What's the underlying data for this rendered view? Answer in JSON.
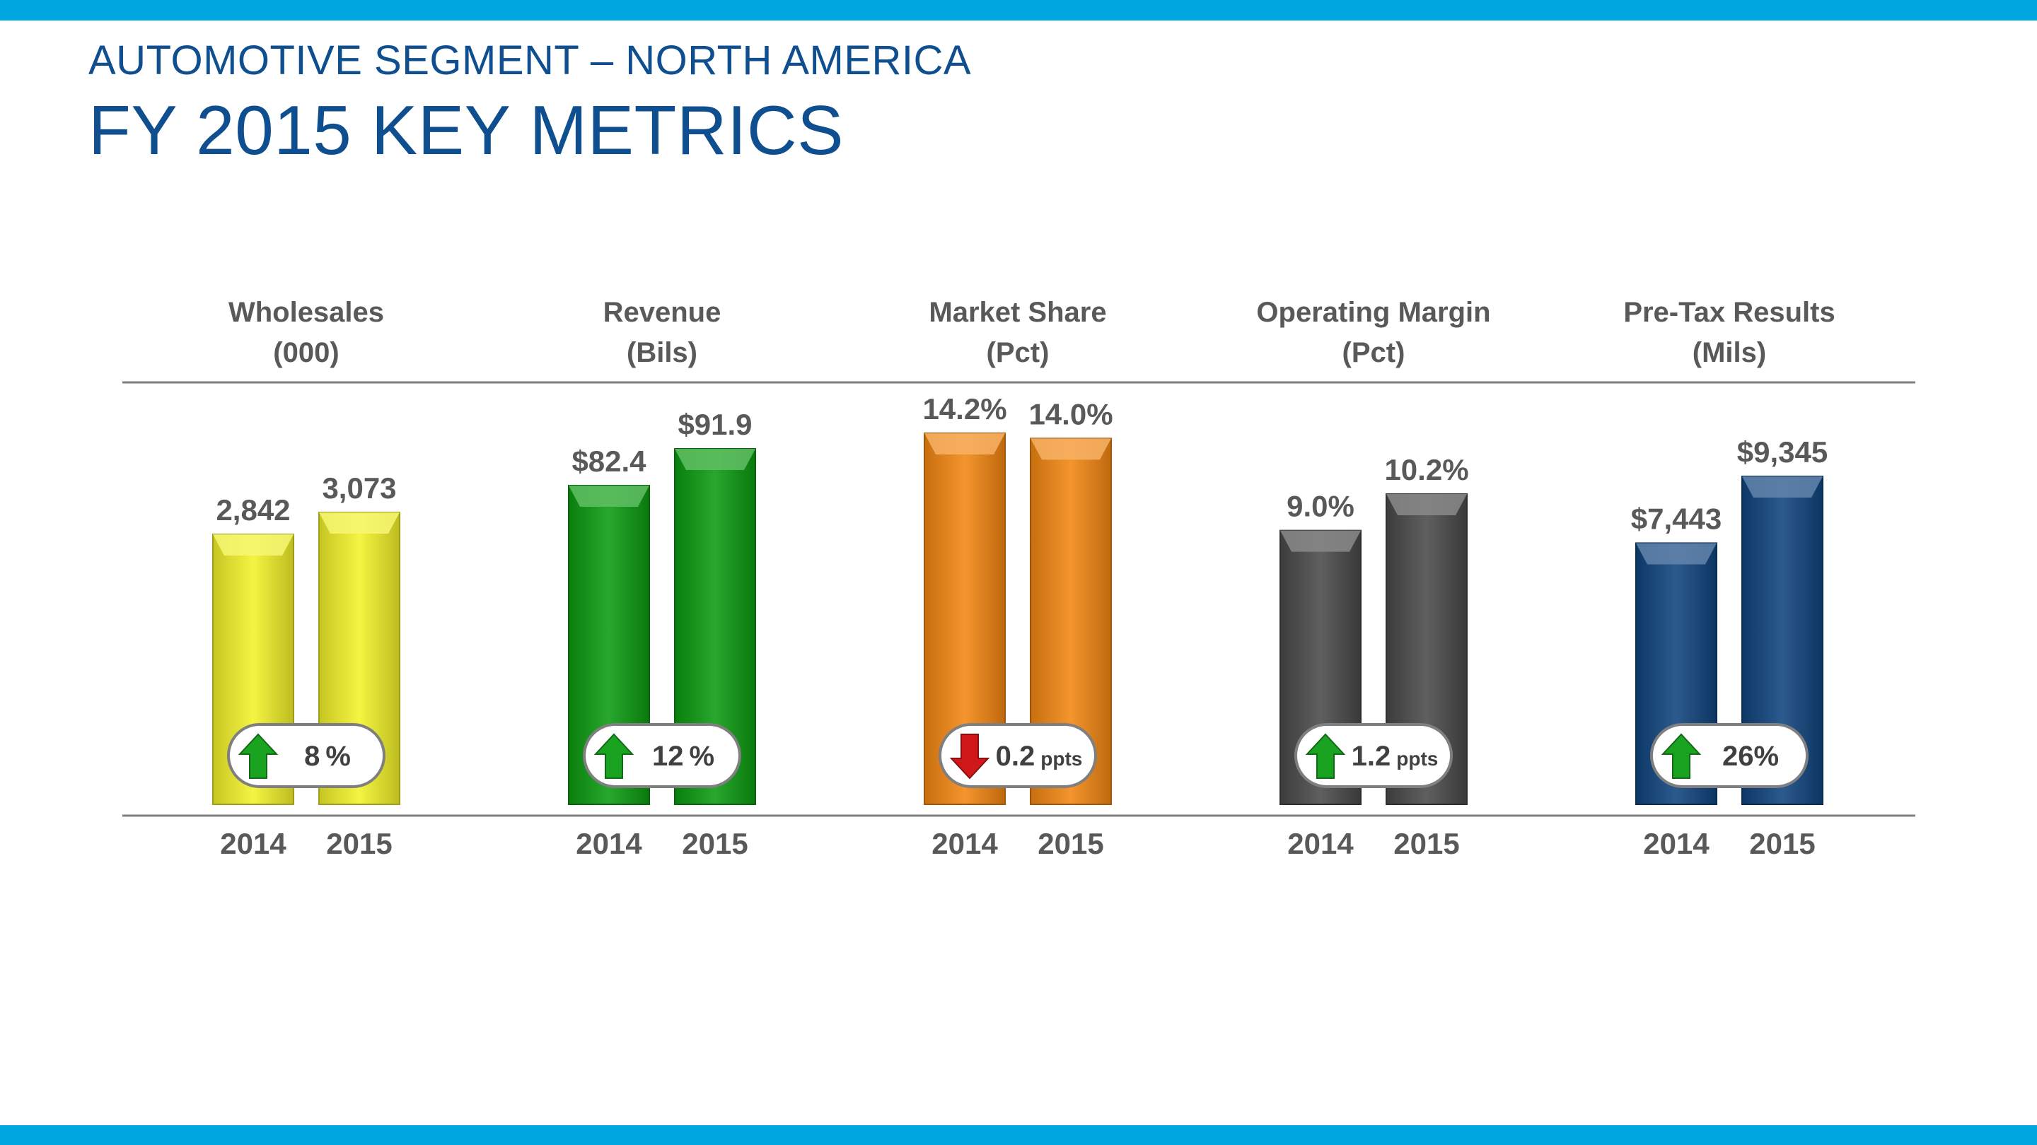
{
  "header": {
    "subtitle": "AUTOMOTIVE SEGMENT – NORTH AMERICA",
    "title": "FY 2015 KEY METRICS"
  },
  "colors": {
    "band": "#00a6e0",
    "title": "#0f4e8f",
    "label": "#595959",
    "up_arrow": "#1aa321",
    "down_arrow": "#d0181b"
  },
  "chart_data": [
    {
      "type": "bar",
      "title": "Wholesales",
      "unit_label": "(000)",
      "categories": [
        "2014",
        "2015"
      ],
      "values": [
        2842,
        3073
      ],
      "value_labels": [
        "2,842",
        "3,073"
      ],
      "color": "#f2f229",
      "change": {
        "direction": "up",
        "value": "8",
        "unit": "%"
      }
    },
    {
      "type": "bar",
      "title": "Revenue",
      "unit_label": "(Bils)",
      "categories": [
        "2014",
        "2015"
      ],
      "values": [
        82.4,
        91.9
      ],
      "value_labels": [
        "$82.4",
        "$91.9"
      ],
      "color": "#0b9b10",
      "change": {
        "direction": "up",
        "value": "12",
        "unit": "%"
      }
    },
    {
      "type": "bar",
      "title": "Market Share",
      "unit_label": "(Pct)",
      "categories": [
        "2014",
        "2015"
      ],
      "values": [
        14.2,
        14.0
      ],
      "value_labels": [
        "14.2%",
        "14.0%"
      ],
      "color": "#f38712",
      "change": {
        "direction": "down",
        "value": "0.2",
        "unit": "ppts"
      }
    },
    {
      "type": "bar",
      "title": "Operating Margin",
      "unit_label": "(Pct)",
      "categories": [
        "2014",
        "2015"
      ],
      "values": [
        9.0,
        10.2
      ],
      "value_labels": [
        "9.0%",
        "10.2%"
      ],
      "color": "#494949",
      "change": {
        "direction": "up",
        "value": "1.2",
        "unit": "ppts"
      }
    },
    {
      "type": "bar",
      "title": "Pre-Tax Results",
      "unit_label": "(Mils)",
      "categories": [
        "2014",
        "2015"
      ],
      "values": [
        7443,
        9345
      ],
      "value_labels": [
        "$7,443",
        "$9,345"
      ],
      "color": "#0f447d",
      "change": {
        "direction": "up",
        "value": "26%",
        "unit": ""
      }
    }
  ]
}
